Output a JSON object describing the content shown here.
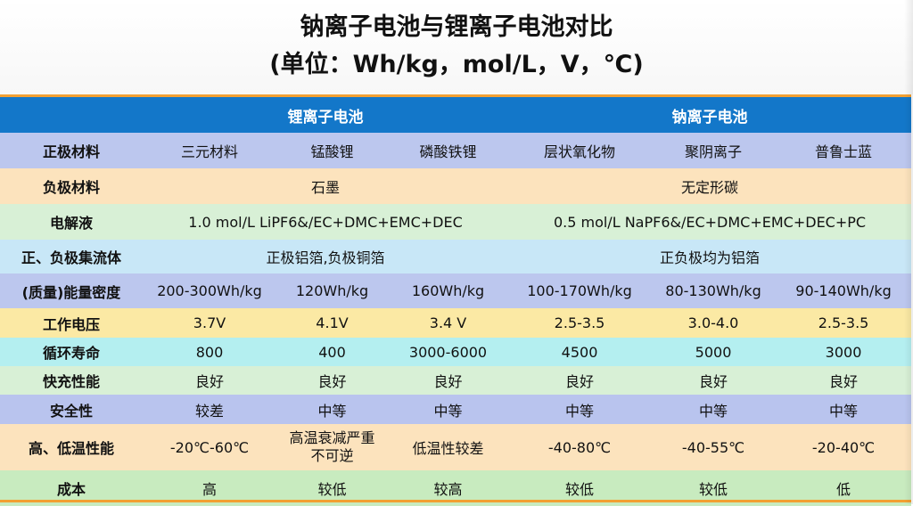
{
  "title": "钠离子电池与锂离子电池对比",
  "subtitle": "(单位：Wh/kg，mol/L，V，℃)",
  "header": {
    "li": "锂离子电池",
    "na": "钠离子电池"
  },
  "rows": {
    "cathode": {
      "label": "正极材料",
      "cells": [
        "三元材料",
        "锰酸锂",
        "磷酸铁锂",
        "层状氧化物",
        "聚阴离子",
        "普鲁士蓝"
      ]
    },
    "anode": {
      "label": "负极材料",
      "li": "石墨",
      "na": "无定形碳"
    },
    "electrolyte": {
      "label": "电解液",
      "li": "1.0 mol/L LiPF6&/EC+DMC+EMC+DEC",
      "na": "0.5 mol/L NaPF6&/EC+DMC+EMC+DEC+PC"
    },
    "collector": {
      "label": "正、负极集流体",
      "li": "正极铝箔,负极铜箔",
      "na": "正负极均为铝箔"
    },
    "energy": {
      "label": "(质量)能量密度",
      "cells": [
        "200-300Wh/kg",
        "120Wh/kg",
        "160Wh/kg",
        "100-170Wh/kg",
        "80-130Wh/kg",
        "90-140Wh/kg"
      ]
    },
    "voltage": {
      "label": "工作电压",
      "cells": [
        "3.7V",
        "4.1V",
        "3.4 V",
        "2.5-3.5",
        "3.0-4.0",
        "2.5-3.5"
      ]
    },
    "cycle": {
      "label": "循环寿命",
      "cells": [
        "800",
        "400",
        "3000-6000",
        "4500",
        "5000",
        "3000"
      ]
    },
    "fastcharge": {
      "label": "快充性能",
      "cells": [
        "良好",
        "良好",
        "良好",
        "良好",
        "良好",
        "良好"
      ]
    },
    "safety": {
      "label": "安全性",
      "cells": [
        "较差",
        "中等",
        "中等",
        "中等",
        "中等",
        "中等"
      ]
    },
    "temperature": {
      "label": "高、低温性能",
      "cells": [
        "-20℃-60℃",
        "高温衰减严重不可逆",
        "低温性较差",
        "-40-80℃",
        "-40-55℃",
        "-20-40℃"
      ]
    },
    "cost": {
      "label": "成本",
      "cells": [
        "高",
        "较低",
        "较高",
        "较低",
        "较低",
        "低"
      ]
    }
  },
  "colors": {
    "header_bg": "#1377c9",
    "accent_orange": "#f2a032"
  }
}
